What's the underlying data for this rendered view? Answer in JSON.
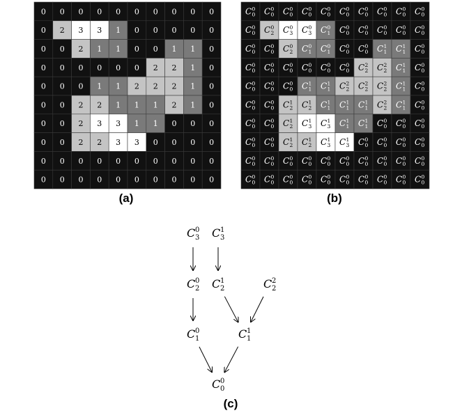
{
  "panel_a": {
    "caption": "(a)",
    "grid": [
      [
        0,
        0,
        0,
        0,
        0,
        0,
        0,
        0,
        0,
        0
      ],
      [
        0,
        2,
        3,
        3,
        1,
        0,
        0,
        0,
        0,
        0
      ],
      [
        0,
        0,
        2,
        1,
        1,
        0,
        0,
        1,
        1,
        0
      ],
      [
        0,
        0,
        0,
        0,
        0,
        0,
        2,
        2,
        1,
        0
      ],
      [
        0,
        0,
        0,
        1,
        1,
        2,
        2,
        2,
        1,
        0
      ],
      [
        0,
        0,
        2,
        2,
        1,
        1,
        1,
        2,
        1,
        0
      ],
      [
        0,
        0,
        2,
        3,
        3,
        1,
        1,
        0,
        0,
        0
      ],
      [
        0,
        0,
        2,
        2,
        3,
        3,
        0,
        0,
        0,
        0
      ],
      [
        0,
        0,
        0,
        0,
        0,
        0,
        0,
        0,
        0,
        0
      ],
      [
        0,
        0,
        0,
        0,
        0,
        0,
        0,
        0,
        0,
        0
      ]
    ]
  },
  "panel_b": {
    "caption": "(b)",
    "label_base": "C",
    "grid_subscripts": [
      [
        0,
        0,
        0,
        0,
        0,
        0,
        0,
        0,
        0,
        0
      ],
      [
        0,
        2,
        3,
        3,
        1,
        0,
        0,
        0,
        0,
        0
      ],
      [
        0,
        0,
        2,
        1,
        1,
        0,
        0,
        1,
        1,
        0
      ],
      [
        0,
        0,
        0,
        0,
        0,
        0,
        2,
        2,
        1,
        0
      ],
      [
        0,
        0,
        0,
        1,
        1,
        2,
        2,
        2,
        1,
        0
      ],
      [
        0,
        0,
        2,
        2,
        1,
        1,
        1,
        2,
        1,
        0
      ],
      [
        0,
        0,
        2,
        3,
        3,
        1,
        1,
        0,
        0,
        0
      ],
      [
        0,
        0,
        2,
        2,
        3,
        3,
        0,
        0,
        0,
        0
      ],
      [
        0,
        0,
        0,
        0,
        0,
        0,
        0,
        0,
        0,
        0
      ],
      [
        0,
        0,
        0,
        0,
        0,
        0,
        0,
        0,
        0,
        0
      ]
    ],
    "grid_superscripts": [
      [
        0,
        0,
        0,
        0,
        0,
        0,
        0,
        0,
        0,
        0
      ],
      [
        0,
        0,
        0,
        0,
        0,
        0,
        0,
        0,
        0,
        0
      ],
      [
        0,
        0,
        0,
        0,
        0,
        0,
        0,
        1,
        1,
        0
      ],
      [
        0,
        0,
        0,
        0,
        0,
        0,
        2,
        2,
        1,
        0
      ],
      [
        0,
        0,
        0,
        1,
        1,
        2,
        2,
        2,
        1,
        0
      ],
      [
        0,
        0,
        1,
        1,
        1,
        1,
        1,
        2,
        1,
        0
      ],
      [
        0,
        0,
        1,
        1,
        1,
        1,
        1,
        0,
        0,
        0
      ],
      [
        0,
        0,
        1,
        1,
        1,
        1,
        0,
        0,
        0,
        0
      ],
      [
        0,
        0,
        0,
        0,
        0,
        0,
        0,
        0,
        0,
        0
      ],
      [
        0,
        0,
        0,
        0,
        0,
        0,
        0,
        0,
        0,
        0
      ]
    ]
  },
  "panel_c": {
    "caption": "(c)",
    "nodes": [
      {
        "id": "C3_0",
        "base": "C",
        "sup": "0",
        "sub": "3"
      },
      {
        "id": "C3_1",
        "base": "C",
        "sup": "1",
        "sub": "3"
      },
      {
        "id": "C2_0",
        "base": "C",
        "sup": "0",
        "sub": "2"
      },
      {
        "id": "C2_1",
        "base": "C",
        "sup": "1",
        "sub": "2"
      },
      {
        "id": "C2_2",
        "base": "C",
        "sup": "2",
        "sub": "2"
      },
      {
        "id": "C1_0",
        "base": "C",
        "sup": "0",
        "sub": "1"
      },
      {
        "id": "C1_1",
        "base": "C",
        "sup": "1",
        "sub": "1"
      },
      {
        "id": "C0_0",
        "base": "C",
        "sup": "0",
        "sub": "0"
      }
    ],
    "edges": [
      [
        "C3_0",
        "C2_0"
      ],
      [
        "C3_1",
        "C2_1"
      ],
      [
        "C2_0",
        "C1_0"
      ],
      [
        "C2_1",
        "C1_1"
      ],
      [
        "C2_2",
        "C1_1"
      ],
      [
        "C1_0",
        "C0_0"
      ],
      [
        "C1_1",
        "C0_0"
      ]
    ]
  },
  "colors": {
    "level_0": "#111111",
    "level_1": "#7a7a7a",
    "level_2": "#c4c4c4",
    "level_3": "#ffffff",
    "text_on_dark": "#ffffff",
    "text_on_light": "#000000",
    "gridline": "#3a3a3a"
  }
}
